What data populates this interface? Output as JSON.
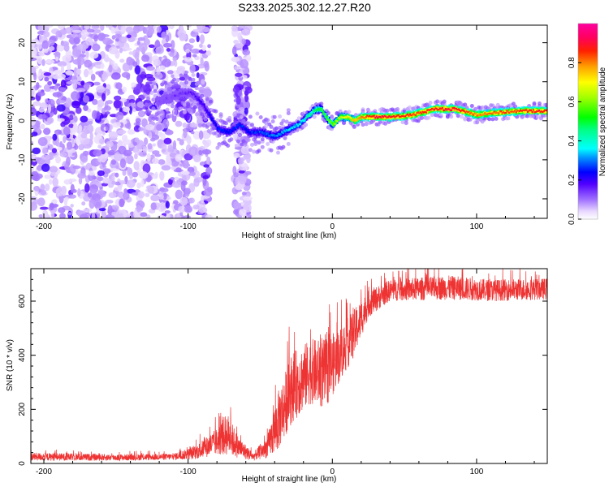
{
  "title": "S233.2025.302.12.27.R20",
  "chart_data": [
    {
      "type": "heatmap",
      "xlabel": "Height of straight line (km)",
      "ylabel": "Frequency (Hz)",
      "xlim": [
        -209,
        149
      ],
      "ylim": [
        -25,
        24.5
      ],
      "xticks": [
        -200,
        -100,
        0,
        100
      ],
      "yticks": [
        -20,
        -10,
        0,
        10,
        20
      ],
      "xtick_labels": [
        "-200",
        "-100",
        "0",
        "100"
      ],
      "ytick_labels": [
        "-20",
        "-10",
        "0",
        "10",
        "20"
      ],
      "colorbar": {
        "label": "Normalized spectral amplitude",
        "range": [
          0,
          1
        ],
        "ticks": [
          0.0,
          0.2,
          0.4,
          0.6,
          0.8
        ],
        "tick_labels": [
          "0.0",
          "0.2",
          "0.4",
          "0.6",
          "0.8"
        ]
      },
      "ridge": [
        {
          "x": -120,
          "y": 5
        },
        {
          "x": -105,
          "y": 7
        },
        {
          "x": -97,
          "y": 7
        },
        {
          "x": -90,
          "y": 4
        },
        {
          "x": -85,
          "y": 1
        },
        {
          "x": -80,
          "y": -2
        },
        {
          "x": -72,
          "y": -3
        },
        {
          "x": -65,
          "y": -1
        },
        {
          "x": -58,
          "y": -3
        },
        {
          "x": -50,
          "y": -3
        },
        {
          "x": -40,
          "y": -4
        },
        {
          "x": -35,
          "y": -3
        },
        {
          "x": -30,
          "y": -2
        },
        {
          "x": -24,
          "y": -1
        },
        {
          "x": -18,
          "y": 1
        },
        {
          "x": -12,
          "y": 3
        },
        {
          "x": -8,
          "y": 3
        },
        {
          "x": -5,
          "y": 1
        },
        {
          "x": 0,
          "y": -1
        },
        {
          "x": 5,
          "y": 1
        },
        {
          "x": 10,
          "y": 1
        },
        {
          "x": 15,
          "y": 0
        },
        {
          "x": 20,
          "y": 1
        },
        {
          "x": 25,
          "y": 1
        },
        {
          "x": 30,
          "y": 1
        },
        {
          "x": 40,
          "y": 1
        },
        {
          "x": 55,
          "y": 1.5
        },
        {
          "x": 70,
          "y": 3
        },
        {
          "x": 85,
          "y": 3
        },
        {
          "x": 95,
          "y": 2
        },
        {
          "x": 100,
          "y": 1.5
        },
        {
          "x": 110,
          "y": 2
        },
        {
          "x": 130,
          "y": 2.5
        },
        {
          "x": 149,
          "y": 2.5
        }
      ],
      "ridge_amplitude": [
        {
          "x": -120,
          "v": 0.12
        },
        {
          "x": -100,
          "v": 0.15
        },
        {
          "x": -90,
          "v": 0.2
        },
        {
          "x": -80,
          "v": 0.25
        },
        {
          "x": -60,
          "v": 0.25
        },
        {
          "x": -40,
          "v": 0.3
        },
        {
          "x": -25,
          "v": 0.35
        },
        {
          "x": -15,
          "v": 0.45
        },
        {
          "x": -5,
          "v": 0.55
        },
        {
          "x": 10,
          "v": 0.7
        },
        {
          "x": 30,
          "v": 0.9
        },
        {
          "x": 60,
          "v": 0.85
        },
        {
          "x": 85,
          "v": 0.9
        },
        {
          "x": 100,
          "v": 0.8
        },
        {
          "x": 149,
          "v": 0.88
        }
      ]
    },
    {
      "type": "line",
      "xlabel": "Height of straight line (km)",
      "ylabel": "SNR (10 * v/v)",
      "xlim": [
        -209,
        149
      ],
      "ylim": [
        0,
        720
      ],
      "xticks": [
        -200,
        -100,
        0,
        100
      ],
      "yticks": [
        0,
        200,
        400,
        600
      ],
      "xtick_labels": [
        "-200",
        "-100",
        "0",
        "100"
      ],
      "ytick_labels": [
        "0",
        "200",
        "400",
        "600"
      ],
      "series": [
        {
          "name": "SNR",
          "color": "#ee3333",
          "envelope": [
            {
              "x": -209,
              "mean": 25,
              "spread": 15
            },
            {
              "x": -150,
              "mean": 22,
              "spread": 12
            },
            {
              "x": -110,
              "mean": 25,
              "spread": 12
            },
            {
              "x": -95,
              "mean": 40,
              "spread": 25
            },
            {
              "x": -80,
              "mean": 80,
              "spread": 50
            },
            {
              "x": -73,
              "mean": 110,
              "spread": 80
            },
            {
              "x": -65,
              "mean": 60,
              "spread": 40
            },
            {
              "x": -55,
              "mean": 25,
              "spread": 15
            },
            {
              "x": -45,
              "mean": 60,
              "spread": 40
            },
            {
              "x": -38,
              "mean": 150,
              "spread": 110
            },
            {
              "x": -28,
              "mean": 280,
              "spread": 130
            },
            {
              "x": -15,
              "mean": 340,
              "spread": 120
            },
            {
              "x": -5,
              "mean": 330,
              "spread": 130
            },
            {
              "x": 5,
              "mean": 400,
              "spread": 100
            },
            {
              "x": 15,
              "mean": 480,
              "spread": 90
            },
            {
              "x": 25,
              "mean": 590,
              "spread": 50
            },
            {
              "x": 40,
              "mean": 640,
              "spread": 40
            },
            {
              "x": 80,
              "mean": 650,
              "spread": 45
            },
            {
              "x": 110,
              "mean": 640,
              "spread": 40
            },
            {
              "x": 149,
              "mean": 645,
              "spread": 40
            }
          ]
        }
      ]
    }
  ]
}
